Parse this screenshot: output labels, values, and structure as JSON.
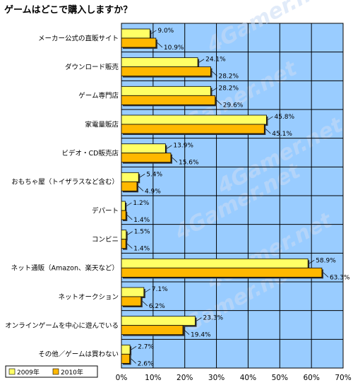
{
  "chart_data": {
    "type": "bar",
    "orientation": "horizontal",
    "title": "ゲームはどこで購入しますか？",
    "categories": [
      "メーカー公式の直販サイト",
      "ダウンロード販売",
      "ゲーム専門店",
      "家電量販店",
      "ビデオ・CD販売店",
      "おもちゃ屋（トイザラスなど含む）",
      "デパート",
      "コンビニ",
      "ネット通販（Amazon、楽天など）",
      "ネットオークション",
      "オンラインゲームを中心に遊んでいる",
      "その他／ゲームは買わない"
    ],
    "series": [
      {
        "name": "2009年",
        "color": "#ffff66",
        "values": [
          9.0,
          24.1,
          28.2,
          45.8,
          13.9,
          5.4,
          1.2,
          1.5,
          58.9,
          7.1,
          23.3,
          2.7
        ]
      },
      {
        "name": "2010年",
        "color": "#ffb800",
        "values": [
          10.9,
          28.2,
          29.6,
          45.1,
          15.6,
          4.9,
          1.4,
          1.4,
          63.3,
          6.2,
          19.4,
          2.6
        ]
      }
    ],
    "value_labels": [
      [
        "9.0%",
        "24.1%",
        "28.2%",
        "45.8%",
        "13.9%",
        "5.4%",
        "1.2%",
        "1.5%",
        "58.9%",
        "7.1%",
        "23.3%",
        "2.7%"
      ],
      [
        "10.9%",
        "28.2%",
        "29.6%",
        "45.1%",
        "15.6%",
        "4.9%",
        "1.4%",
        "1.4%",
        "63.3%",
        "6.2%",
        "19.4%",
        "2.6%"
      ]
    ],
    "xlim": [
      0,
      70
    ],
    "xticks": [
      "0%",
      "10%",
      "20%",
      "30%",
      "40%",
      "50%",
      "60%",
      "70%"
    ],
    "grid": true,
    "plot_background": "#99ccff",
    "legend_position": "bottom-left",
    "watermark": "4Gamer.net"
  }
}
